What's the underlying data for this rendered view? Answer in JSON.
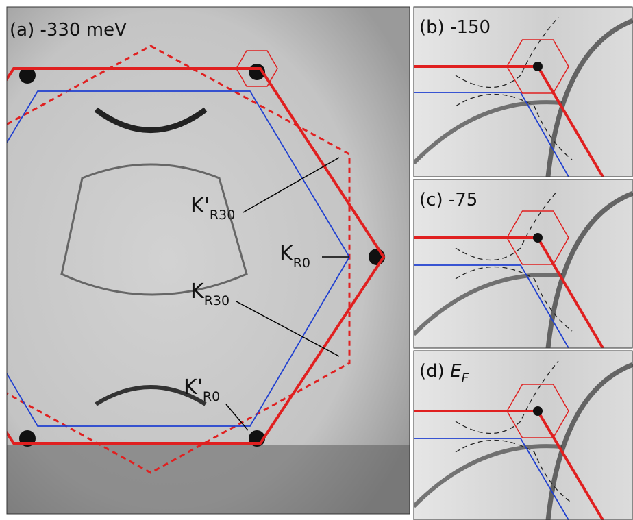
{
  "panels": [
    {
      "tag": "(a)",
      "text": "-330 meV"
    },
    {
      "tag": "(b)",
      "text": "-150"
    },
    {
      "tag": "(c)",
      "text": "-75"
    },
    {
      "tag": "(d)",
      "text": "E",
      "sub": "F"
    }
  ],
  "annotations": [
    {
      "main": "K'",
      "sub": "R30"
    },
    {
      "main": "K",
      "sub": "R0"
    },
    {
      "main": "K",
      "sub": "R30"
    },
    {
      "main": "K'",
      "sub": "R0"
    }
  ]
}
